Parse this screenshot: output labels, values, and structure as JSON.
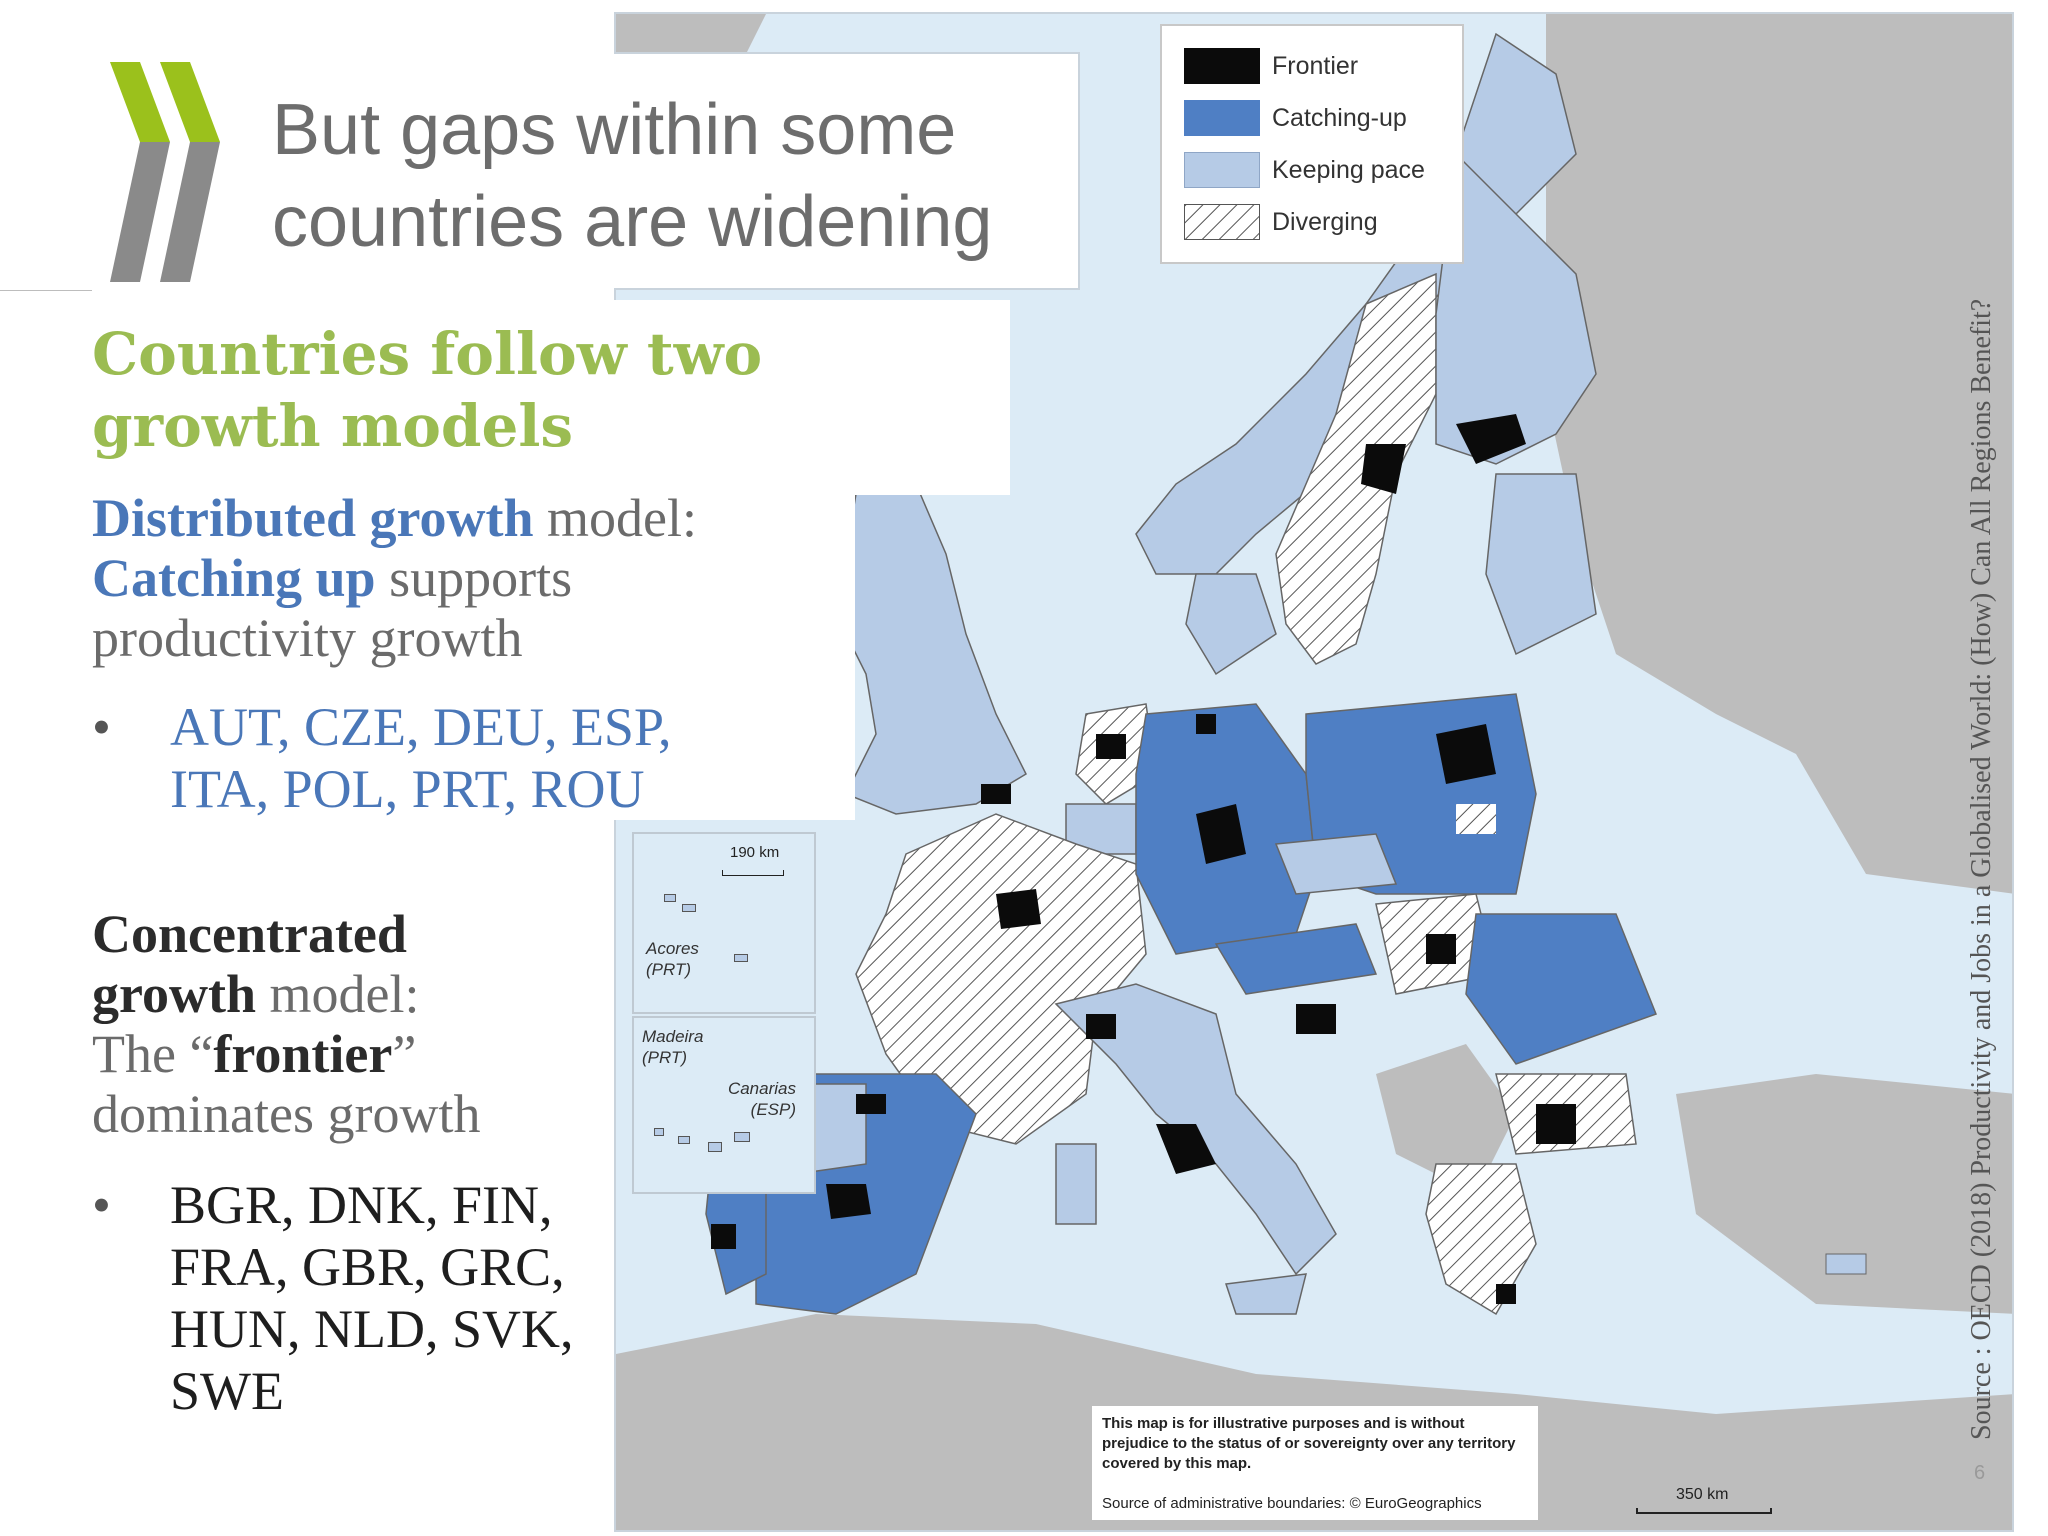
{
  "title": {
    "line1": "But gaps within some",
    "line2": "countries are widening"
  },
  "heading": {
    "line1": "Countries follow two",
    "line2": "growth models"
  },
  "distributed": {
    "bold1": "Distributed growth",
    "rest1": " model:",
    "bold2": "Catching up",
    "rest2": " supports",
    "line3": "productivity growth",
    "bullet": "•",
    "countries_line1": "AUT, CZE, DEU, ESP,",
    "countries_line2": "ITA, POL, PRT, ROU"
  },
  "concentrated": {
    "bold1": "Concentrated",
    "bold2": "growth",
    "rest2": " model:",
    "pre3": "The “",
    "bold3": "frontier",
    "post3": "”",
    "line4": "dominates growth",
    "bullet": "•",
    "countries_line1": "BGR, DNK, FIN,",
    "countries_line2": "FRA, GBR, GRC,",
    "countries_line3": "HUN, NLD, SVK,",
    "countries_line4": "SWE"
  },
  "legend": {
    "frontier": "Frontier",
    "catching_up": "Catching-up",
    "keeping_pace": "Keeping pace",
    "diverging": "Diverging"
  },
  "colors": {
    "frontier": "#0b0b0b",
    "catching_up": "#4f7fc4",
    "keeping_pace": "#b6cbe6",
    "sea": "#dcebf6",
    "non_region": "#bdbdbd",
    "heading_green": "#9bbc52",
    "accent_blue": "#4a77b8"
  },
  "insets": {
    "acores": "Acores",
    "acores_country": "(PRT)",
    "madeira": "Madeira",
    "madeira_country": "(PRT)",
    "canarias": "Canarias",
    "canarias_country": "(ESP)",
    "inset_scale": "190 km"
  },
  "disclaimer": {
    "text": "This map is for illustrative purposes and is without prejudice to the status of or sovereignty over any territory covered by this map.",
    "source": "Source of administrative boundaries:  © EuroGeographics"
  },
  "map_scale": "350 km",
  "source_note": "Source : OECD (2018) Productivity and Jobs in a Globalised World: (How) Can All Regions Benefit?",
  "slide_number": "6"
}
